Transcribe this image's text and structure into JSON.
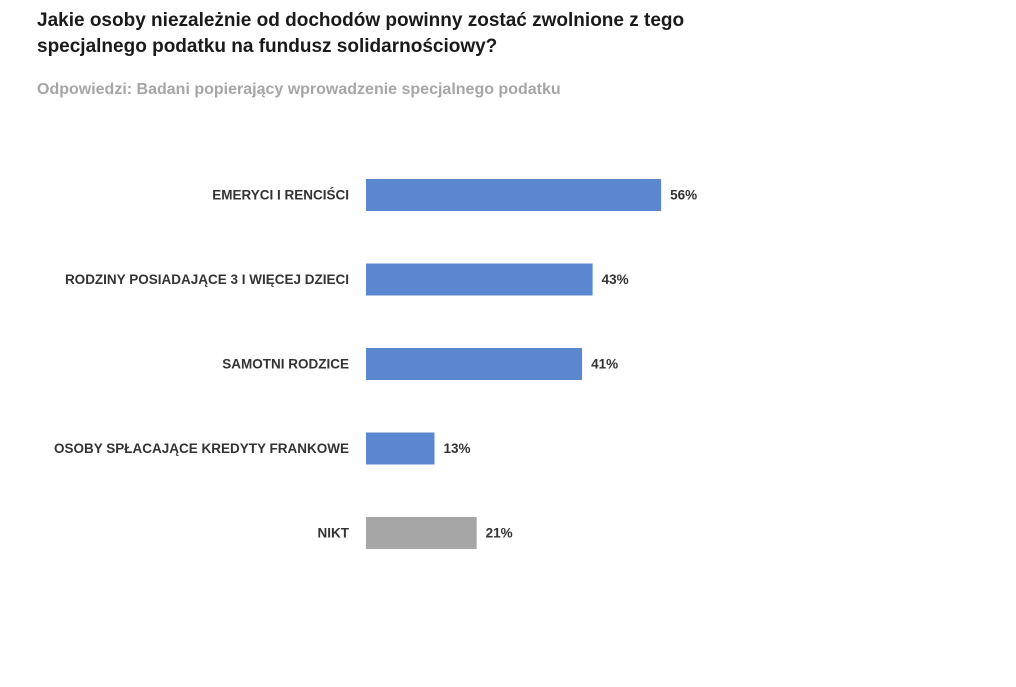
{
  "chart_data": {
    "type": "bar",
    "orientation": "horizontal",
    "title": "Jakie osoby niezależnie od dochodów powinny zostać zwolnione z tego specjalnego podatku na fundusz solidarnościowy?",
    "subtitle": "Odpowiedzi: Badani popierający wprowadzenie specjalnego podatku",
    "categories": [
      "EMERYCI I RENCIŚCI",
      "RODZINY POSIADAJĄCE 3 I WIĘCEJ DZIECI",
      "SAMOTNI RODZICE",
      "OSOBY SPŁACAJĄCE KREDYTY FRANKOWE",
      "NIKT"
    ],
    "values": [
      56,
      43,
      41,
      13,
      21
    ],
    "value_labels": [
      "56%",
      "43%",
      "41%",
      "13%",
      "21%"
    ],
    "colors": [
      "#5b87d0",
      "#5b87d0",
      "#5b87d0",
      "#5b87d0",
      "#a6a6a6"
    ],
    "value_unit": "%",
    "grid": false,
    "legend": "none"
  }
}
